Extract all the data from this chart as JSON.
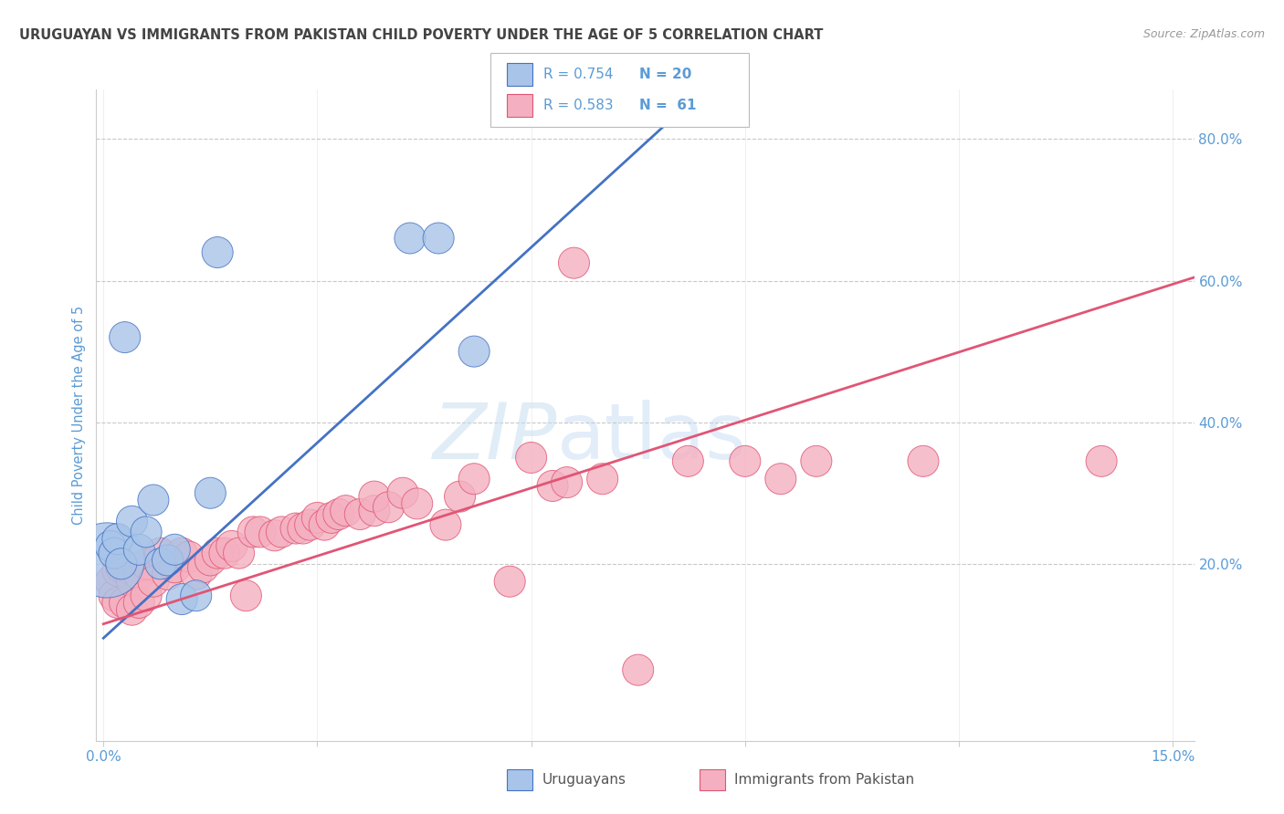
{
  "title": "URUGUAYAN VS IMMIGRANTS FROM PAKISTAN CHILD POVERTY UNDER THE AGE OF 5 CORRELATION CHART",
  "source": "Source: ZipAtlas.com",
  "ylabel": "Child Poverty Under the Age of 5",
  "xlim": [
    -0.001,
    0.153
  ],
  "ylim": [
    -0.05,
    0.87
  ],
  "xticks": [
    0.0,
    0.03,
    0.06,
    0.09,
    0.12,
    0.15
  ],
  "xtick_labels": [
    "0.0%",
    "",
    "",
    "",
    "",
    "15.0%"
  ],
  "yticks_right": [
    0.2,
    0.4,
    0.6,
    0.8
  ],
  "ytick_labels_right": [
    "20.0%",
    "40.0%",
    "60.0%",
    "80.0%"
  ],
  "background_color": "#ffffff",
  "grid_color": "#c8c8c8",
  "title_color": "#444444",
  "source_color": "#999999",
  "label_color": "#5b9bd5",
  "uruguayan_fill": "#a8c4e8",
  "uruguayan_edge": "#4472c4",
  "pakistan_fill": "#f4b0c0",
  "pakistan_edge": "#e05575",
  "uruguayan_line_color": "#4472c4",
  "pakistan_line_color": "#e05575",
  "legend_r_u": "R = 0.754",
  "legend_n_u": "N = 20",
  "legend_r_p": "R = 0.583",
  "legend_n_p": "N =  61",
  "label_u": "Uruguayans",
  "label_p": "Immigrants from Pakistan",
  "watermark_zip": "ZIP",
  "watermark_atlas": "atlas",
  "uruguayan_intercept": 0.095,
  "uruguayan_slope": 9.2,
  "pakistan_intercept": 0.115,
  "pakistan_slope": 3.2,
  "ux": [
    0.0005,
    0.001,
    0.0015,
    0.002,
    0.0025,
    0.003,
    0.004,
    0.005,
    0.006,
    0.007,
    0.008,
    0.009,
    0.01,
    0.011,
    0.013,
    0.015,
    0.016,
    0.043,
    0.047,
    0.052
  ],
  "uy": [
    0.205,
    0.225,
    0.215,
    0.235,
    0.2,
    0.52,
    0.26,
    0.22,
    0.245,
    0.29,
    0.2,
    0.205,
    0.22,
    0.15,
    0.155,
    0.3,
    0.64,
    0.66,
    0.66,
    0.5
  ],
  "us": [
    700,
    120,
    120,
    120,
    120,
    120,
    120,
    120,
    120,
    120,
    120,
    120,
    120,
    120,
    120,
    120,
    120,
    120,
    120,
    120
  ],
  "px": [
    0.001,
    0.0015,
    0.002,
    0.002,
    0.0025,
    0.003,
    0.003,
    0.004,
    0.004,
    0.005,
    0.005,
    0.006,
    0.006,
    0.007,
    0.008,
    0.009,
    0.01,
    0.011,
    0.012,
    0.013,
    0.014,
    0.015,
    0.016,
    0.017,
    0.018,
    0.019,
    0.02,
    0.021,
    0.022,
    0.024,
    0.025,
    0.027,
    0.028,
    0.029,
    0.03,
    0.031,
    0.032,
    0.033,
    0.034,
    0.036,
    0.038,
    0.038,
    0.04,
    0.042,
    0.044,
    0.048,
    0.05,
    0.052,
    0.057,
    0.06,
    0.063,
    0.065,
    0.066,
    0.07,
    0.075,
    0.082,
    0.09,
    0.095,
    0.1,
    0.115,
    0.14
  ],
  "py": [
    0.175,
    0.155,
    0.19,
    0.145,
    0.195,
    0.195,
    0.145,
    0.175,
    0.135,
    0.185,
    0.145,
    0.2,
    0.155,
    0.175,
    0.215,
    0.185,
    0.195,
    0.215,
    0.21,
    0.185,
    0.195,
    0.205,
    0.215,
    0.215,
    0.225,
    0.215,
    0.155,
    0.245,
    0.245,
    0.24,
    0.245,
    0.25,
    0.25,
    0.255,
    0.265,
    0.255,
    0.265,
    0.27,
    0.275,
    0.27,
    0.275,
    0.295,
    0.28,
    0.3,
    0.285,
    0.255,
    0.295,
    0.32,
    0.175,
    0.35,
    0.31,
    0.315,
    0.625,
    0.32,
    0.05,
    0.345,
    0.345,
    0.32,
    0.345,
    0.345,
    0.345
  ],
  "ps": [
    120,
    120,
    120,
    120,
    120,
    120,
    120,
    120,
    120,
    120,
    120,
    120,
    120,
    120,
    120,
    120,
    120,
    120,
    120,
    120,
    120,
    120,
    120,
    120,
    120,
    120,
    120,
    120,
    120,
    120,
    120,
    120,
    120,
    120,
    120,
    120,
    120,
    120,
    120,
    120,
    120,
    120,
    120,
    120,
    120,
    120,
    120,
    120,
    120,
    120,
    120,
    120,
    120,
    120,
    120,
    120,
    120,
    120,
    120,
    120,
    120
  ]
}
